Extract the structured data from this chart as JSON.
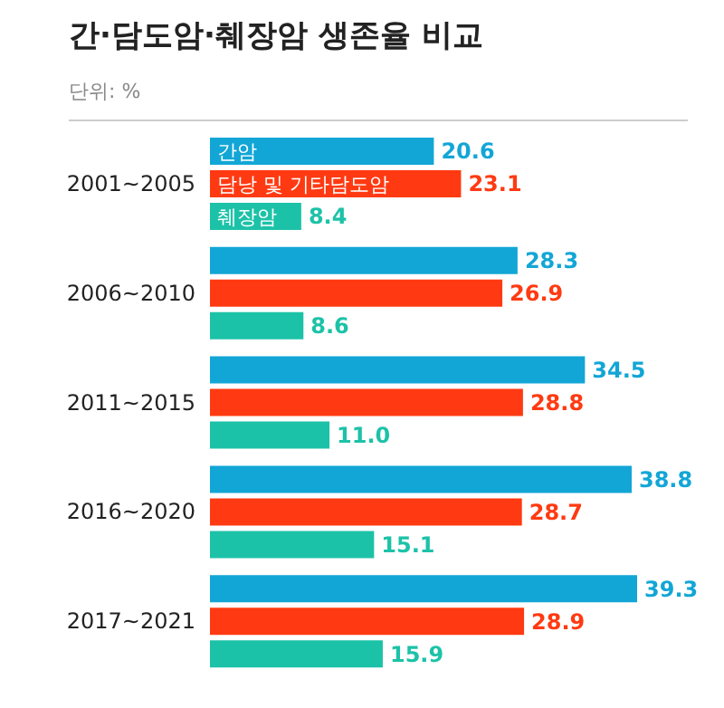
{
  "chart_data": {
    "type": "bar",
    "orientation": "horizontal",
    "title": "간·담도암·췌장암 생존율 비교",
    "subtitle": "단위: %",
    "categories": [
      "2001~2005",
      "2006~2010",
      "2011~2015",
      "2016~2020",
      "2017~2021"
    ],
    "series": [
      {
        "name": "간암",
        "color": "#12a6d6",
        "values": [
          20.6,
          28.3,
          34.5,
          38.8,
          39.3
        ],
        "value_labels": [
          "20.6",
          "28.3",
          "34.5",
          "38.8",
          "39.3"
        ]
      },
      {
        "name": "담낭 및 기타담도암",
        "color": "#ff3a12",
        "values": [
          23.1,
          26.9,
          28.8,
          28.7,
          28.9
        ],
        "value_labels": [
          "23.1",
          "26.9",
          "28.8",
          "28.7",
          "28.9"
        ]
      },
      {
        "name": "췌장암",
        "color": "#1cc2a8",
        "values": [
          8.4,
          8.6,
          11.0,
          15.1,
          15.9
        ],
        "value_labels": [
          "8.4",
          "8.6",
          "11.0",
          "15.1",
          "15.9"
        ]
      }
    ],
    "legend": false
  }
}
